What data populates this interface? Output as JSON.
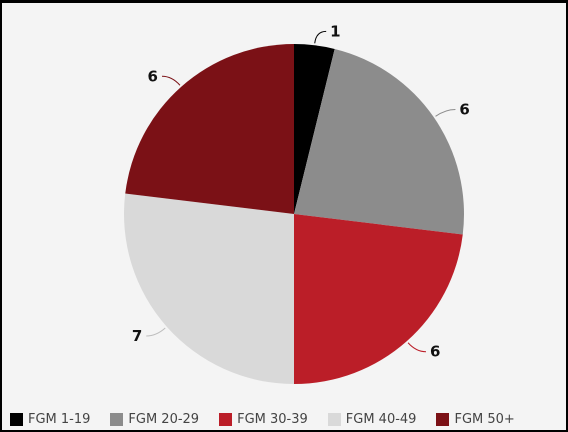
{
  "chart_data": {
    "type": "pie",
    "title": "",
    "categories": [
      "FGM 1-19",
      "FGM 20-29",
      "FGM 30-39",
      "FGM 40-49",
      "FGM 50+"
    ],
    "values": [
      1,
      6,
      6,
      7,
      6
    ],
    "colors": [
      "#000000",
      "#8c8c8c",
      "#bb1e28",
      "#d9d9d9",
      "#7b1116"
    ],
    "data_labels": [
      "1",
      "6",
      "6",
      "7",
      "6"
    ],
    "legend_position": "bottom",
    "start_angle": "top, clockwise"
  }
}
